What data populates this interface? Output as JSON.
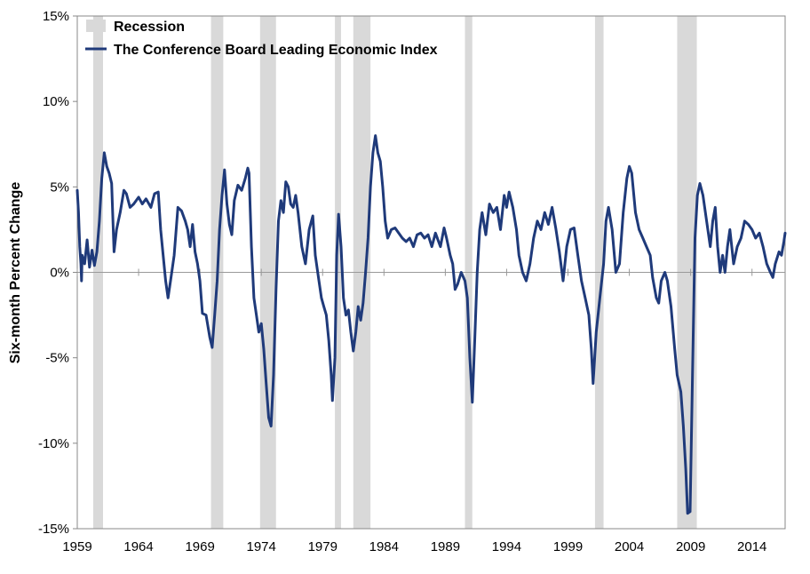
{
  "chart_data": {
    "type": "line",
    "title": "",
    "xlabel": "",
    "ylabel": "Six-month Percent Change",
    "xlim": [
      1959.0,
      2016.7
    ],
    "ylim": [
      -15,
      15
    ],
    "y_ticks": [
      15,
      10,
      5,
      0,
      -5,
      -10,
      -15
    ],
    "y_tick_labels": [
      "15%",
      "10%",
      "5%",
      "0%",
      "-5%",
      "-10%",
      "-15%"
    ],
    "x_ticks": [
      1959,
      1964,
      1969,
      1974,
      1979,
      1984,
      1989,
      1994,
      1999,
      2004,
      2009,
      2014
    ],
    "x_tick_labels": [
      "1959",
      "1964",
      "1969",
      "1974",
      "1979",
      "1984",
      "1989",
      "1994",
      "1999",
      "2004",
      "2009",
      "2014"
    ],
    "grid": false,
    "legend_position": "top-left",
    "legend": [
      {
        "label": "Recession",
        "kind": "band",
        "color": "#d9d9d9"
      },
      {
        "label": "The Conference Board Leading Economic Index",
        "kind": "line",
        "color": "#1f3a7a"
      }
    ],
    "recessions": [
      [
        1960.3,
        1961.1
      ],
      [
        1969.9,
        1970.9
      ],
      [
        1973.9,
        1975.2
      ],
      [
        1980.0,
        1980.5
      ],
      [
        1981.5,
        1982.9
      ],
      [
        1990.6,
        1991.2
      ],
      [
        2001.2,
        2001.9
      ],
      [
        2007.9,
        2009.5
      ]
    ],
    "series": [
      {
        "name": "The Conference Board Leading Economic Index",
        "color": "#1f3a7a",
        "points": [
          [
            1959.0,
            4.8
          ],
          [
            1959.1,
            3.5
          ],
          [
            1959.2,
            1.5
          ],
          [
            1959.3,
            0.5
          ],
          [
            1959.35,
            -0.5
          ],
          [
            1959.4,
            1.0
          ],
          [
            1959.6,
            0.5
          ],
          [
            1959.8,
            1.9
          ],
          [
            1960.0,
            0.3
          ],
          [
            1960.2,
            1.3
          ],
          [
            1960.4,
            0.4
          ],
          [
            1960.6,
            1.2
          ],
          [
            1960.8,
            3.0
          ],
          [
            1961.0,
            5.5
          ],
          [
            1961.2,
            7.0
          ],
          [
            1961.4,
            6.2
          ],
          [
            1961.6,
            5.8
          ],
          [
            1961.8,
            5.2
          ],
          [
            1962.0,
            1.2
          ],
          [
            1962.2,
            2.5
          ],
          [
            1962.5,
            3.5
          ],
          [
            1962.8,
            4.8
          ],
          [
            1963.0,
            4.6
          ],
          [
            1963.3,
            3.8
          ],
          [
            1963.6,
            4.0
          ],
          [
            1964.0,
            4.4
          ],
          [
            1964.3,
            4.0
          ],
          [
            1964.6,
            4.3
          ],
          [
            1965.0,
            3.8
          ],
          [
            1965.3,
            4.6
          ],
          [
            1965.6,
            4.7
          ],
          [
            1965.8,
            2.5
          ],
          [
            1966.0,
            1.0
          ],
          [
            1966.2,
            -0.5
          ],
          [
            1966.4,
            -1.5
          ],
          [
            1966.6,
            -0.5
          ],
          [
            1966.9,
            1.0
          ],
          [
            1967.2,
            3.8
          ],
          [
            1967.5,
            3.6
          ],
          [
            1967.8,
            3.0
          ],
          [
            1968.0,
            2.5
          ],
          [
            1968.2,
            1.5
          ],
          [
            1968.4,
            2.8
          ],
          [
            1968.6,
            1.2
          ],
          [
            1968.8,
            0.5
          ],
          [
            1969.0,
            -0.5
          ],
          [
            1969.2,
            -2.4
          ],
          [
            1969.5,
            -2.5
          ],
          [
            1969.8,
            -3.8
          ],
          [
            1970.0,
            -4.4
          ],
          [
            1970.2,
            -2.5
          ],
          [
            1970.4,
            -0.5
          ],
          [
            1970.6,
            2.5
          ],
          [
            1970.8,
            4.5
          ],
          [
            1971.0,
            6.0
          ],
          [
            1971.2,
            4.0
          ],
          [
            1971.4,
            2.8
          ],
          [
            1971.6,
            2.2
          ],
          [
            1971.8,
            4.2
          ],
          [
            1972.1,
            5.1
          ],
          [
            1972.4,
            4.8
          ],
          [
            1972.7,
            5.5
          ],
          [
            1972.9,
            6.1
          ],
          [
            1973.0,
            5.8
          ],
          [
            1973.2,
            1.5
          ],
          [
            1973.4,
            -1.5
          ],
          [
            1973.6,
            -2.5
          ],
          [
            1973.8,
            -3.5
          ],
          [
            1974.0,
            -3.0
          ],
          [
            1974.2,
            -4.5
          ],
          [
            1974.4,
            -6.5
          ],
          [
            1974.6,
            -8.5
          ],
          [
            1974.8,
            -9.0
          ],
          [
            1975.0,
            -6.0
          ],
          [
            1975.2,
            -1.0
          ],
          [
            1975.4,
            3.0
          ],
          [
            1975.6,
            4.2
          ],
          [
            1975.8,
            3.5
          ],
          [
            1976.0,
            5.3
          ],
          [
            1976.2,
            5.0
          ],
          [
            1976.4,
            4.0
          ],
          [
            1976.6,
            3.8
          ],
          [
            1976.8,
            4.5
          ],
          [
            1977.0,
            3.5
          ],
          [
            1977.3,
            1.5
          ],
          [
            1977.6,
            0.5
          ],
          [
            1977.9,
            2.5
          ],
          [
            1978.2,
            3.3
          ],
          [
            1978.4,
            1.0
          ],
          [
            1978.7,
            -0.5
          ],
          [
            1978.9,
            -1.5
          ],
          [
            1979.1,
            -2.0
          ],
          [
            1979.3,
            -2.5
          ],
          [
            1979.5,
            -4.0
          ],
          [
            1979.7,
            -6.0
          ],
          [
            1979.8,
            -7.5
          ],
          [
            1980.0,
            -5.0
          ],
          [
            1980.15,
            1.0
          ],
          [
            1980.3,
            3.4
          ],
          [
            1980.5,
            1.5
          ],
          [
            1980.7,
            -1.5
          ],
          [
            1980.9,
            -2.5
          ],
          [
            1981.1,
            -2.2
          ],
          [
            1981.3,
            -3.5
          ],
          [
            1981.5,
            -4.6
          ],
          [
            1981.7,
            -3.5
          ],
          [
            1981.9,
            -2.0
          ],
          [
            1982.1,
            -2.8
          ],
          [
            1982.3,
            -1.8
          ],
          [
            1982.5,
            0.0
          ],
          [
            1982.7,
            2.0
          ],
          [
            1982.9,
            5.0
          ],
          [
            1983.1,
            7.0
          ],
          [
            1983.3,
            8.0
          ],
          [
            1983.5,
            7.0
          ],
          [
            1983.7,
            6.5
          ],
          [
            1983.9,
            5.0
          ],
          [
            1984.1,
            3.0
          ],
          [
            1984.3,
            2.0
          ],
          [
            1984.6,
            2.5
          ],
          [
            1984.9,
            2.6
          ],
          [
            1985.2,
            2.3
          ],
          [
            1985.5,
            2.0
          ],
          [
            1985.8,
            1.8
          ],
          [
            1986.1,
            2.0
          ],
          [
            1986.4,
            1.5
          ],
          [
            1986.7,
            2.2
          ],
          [
            1987.0,
            2.3
          ],
          [
            1987.3,
            2.0
          ],
          [
            1987.6,
            2.2
          ],
          [
            1987.9,
            1.5
          ],
          [
            1988.2,
            2.3
          ],
          [
            1988.6,
            1.5
          ],
          [
            1988.9,
            2.6
          ],
          [
            1989.1,
            2.0
          ],
          [
            1989.4,
            1.0
          ],
          [
            1989.6,
            0.5
          ],
          [
            1989.8,
            -1.0
          ],
          [
            1990.0,
            -0.7
          ],
          [
            1990.3,
            0.0
          ],
          [
            1990.6,
            -0.5
          ],
          [
            1990.8,
            -1.5
          ],
          [
            1991.0,
            -5.0
          ],
          [
            1991.2,
            -7.6
          ],
          [
            1991.4,
            -4.0
          ],
          [
            1991.6,
            0.0
          ],
          [
            1991.8,
            2.5
          ],
          [
            1992.0,
            3.5
          ],
          [
            1992.3,
            2.2
          ],
          [
            1992.6,
            4.0
          ],
          [
            1992.9,
            3.5
          ],
          [
            1993.2,
            3.8
          ],
          [
            1993.5,
            2.5
          ],
          [
            1993.8,
            4.5
          ],
          [
            1994.0,
            3.8
          ],
          [
            1994.2,
            4.7
          ],
          [
            1994.5,
            3.8
          ],
          [
            1994.8,
            2.5
          ],
          [
            1995.0,
            1.0
          ],
          [
            1995.3,
            0.0
          ],
          [
            1995.6,
            -0.5
          ],
          [
            1995.9,
            0.5
          ],
          [
            1996.2,
            2.0
          ],
          [
            1996.5,
            3.0
          ],
          [
            1996.8,
            2.5
          ],
          [
            1997.1,
            3.5
          ],
          [
            1997.4,
            2.8
          ],
          [
            1997.7,
            3.8
          ],
          [
            1998.0,
            2.6
          ],
          [
            1998.3,
            1.2
          ],
          [
            1998.6,
            -0.5
          ],
          [
            1998.9,
            1.5
          ],
          [
            1999.2,
            2.5
          ],
          [
            1999.5,
            2.6
          ],
          [
            1999.8,
            1.0
          ],
          [
            2000.1,
            -0.5
          ],
          [
            2000.4,
            -1.5
          ],
          [
            2000.7,
            -2.5
          ],
          [
            2000.9,
            -4.5
          ],
          [
            2001.05,
            -6.5
          ],
          [
            2001.3,
            -3.5
          ],
          [
            2001.6,
            -1.5
          ],
          [
            2001.9,
            0.5
          ],
          [
            2002.1,
            3.0
          ],
          [
            2002.3,
            3.8
          ],
          [
            2002.6,
            2.5
          ],
          [
            2002.9,
            0.0
          ],
          [
            2003.2,
            0.5
          ],
          [
            2003.5,
            3.5
          ],
          [
            2003.8,
            5.5
          ],
          [
            2004.0,
            6.2
          ],
          [
            2004.2,
            5.8
          ],
          [
            2004.5,
            3.5
          ],
          [
            2004.8,
            2.5
          ],
          [
            2005.1,
            2.0
          ],
          [
            2005.4,
            1.5
          ],
          [
            2005.7,
            1.0
          ],
          [
            2005.9,
            -0.3
          ],
          [
            2006.2,
            -1.5
          ],
          [
            2006.4,
            -1.8
          ],
          [
            2006.6,
            -0.5
          ],
          [
            2006.9,
            0.0
          ],
          [
            2007.1,
            -0.5
          ],
          [
            2007.4,
            -2.0
          ],
          [
            2007.7,
            -4.5
          ],
          [
            2007.9,
            -6.0
          ],
          [
            2008.2,
            -7.0
          ],
          [
            2008.4,
            -9.0
          ],
          [
            2008.6,
            -11.5
          ],
          [
            2008.75,
            -14.1
          ],
          [
            2008.95,
            -14.0
          ],
          [
            2009.15,
            -6.0
          ],
          [
            2009.35,
            2.0
          ],
          [
            2009.55,
            4.5
          ],
          [
            2009.75,
            5.2
          ],
          [
            2010.0,
            4.5
          ],
          [
            2010.3,
            3.0
          ],
          [
            2010.6,
            1.5
          ],
          [
            2010.8,
            3.0
          ],
          [
            2011.0,
            3.8
          ],
          [
            2011.2,
            1.5
          ],
          [
            2011.4,
            0.0
          ],
          [
            2011.6,
            1.0
          ],
          [
            2011.8,
            0.0
          ],
          [
            2012.0,
            1.5
          ],
          [
            2012.2,
            2.5
          ],
          [
            2012.5,
            0.5
          ],
          [
            2012.8,
            1.5
          ],
          [
            2013.1,
            2.0
          ],
          [
            2013.4,
            3.0
          ],
          [
            2013.7,
            2.8
          ],
          [
            2014.0,
            2.5
          ],
          [
            2014.3,
            2.0
          ],
          [
            2014.6,
            2.3
          ],
          [
            2014.9,
            1.5
          ],
          [
            2015.2,
            0.5
          ],
          [
            2015.5,
            0.0
          ],
          [
            2015.7,
            -0.3
          ],
          [
            2015.9,
            0.5
          ],
          [
            2016.2,
            1.2
          ],
          [
            2016.4,
            1.0
          ],
          [
            2016.6,
            1.8
          ],
          [
            2016.7,
            2.3
          ]
        ]
      }
    ]
  }
}
